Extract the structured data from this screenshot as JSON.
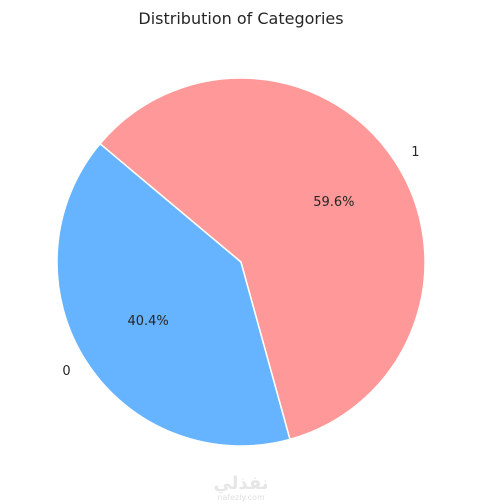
{
  "chart_data": {
    "type": "pie",
    "title": "Distribution of Categories",
    "start_angle_deg": 140,
    "counterclockwise": true,
    "slices": [
      {
        "label": "0",
        "value": 40.4,
        "pct_label": "40.4%",
        "color": "#66b3ff"
      },
      {
        "label": "1",
        "value": 59.6,
        "pct_label": "59.6%",
        "color": "#ff9999"
      }
    ]
  },
  "watermark": {
    "arabic": "نفذلي",
    "latin": "nafezly.com"
  }
}
